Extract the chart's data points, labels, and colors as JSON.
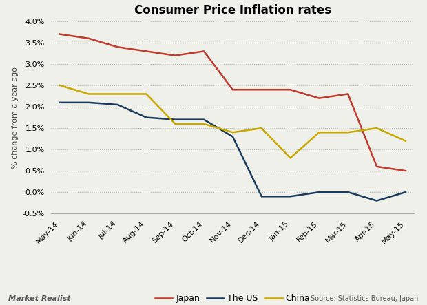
{
  "title": "Consumer Price Inflation rates",
  "ylabel": "% change from a year ago",
  "source_text": "Source: Statistics Bureau, Japan",
  "watermark": "Market Realist",
  "x_labels": [
    "May-14",
    "Jun-14",
    "Jul-14",
    "Aug-14",
    "Sep-14",
    "Oct-14",
    "Nov-14",
    "Dec-14",
    "Jan-15",
    "Feb-15",
    "Mar-15",
    "Apr-15",
    "May-15"
  ],
  "japan": [
    3.7,
    3.6,
    3.4,
    3.3,
    3.2,
    3.3,
    2.4,
    2.4,
    2.4,
    2.2,
    2.3,
    0.6,
    0.5
  ],
  "us": [
    2.1,
    2.1,
    2.05,
    1.75,
    1.7,
    1.7,
    1.3,
    -0.1,
    -0.1,
    0.0,
    0.0,
    -0.2,
    0.0
  ],
  "china": [
    2.5,
    2.3,
    2.3,
    2.3,
    1.6,
    1.6,
    1.4,
    1.5,
    0.8,
    1.4,
    1.4,
    1.5,
    1.2
  ],
  "japan_color": "#c0392b",
  "us_color": "#1a3a5c",
  "china_color": "#c8a800",
  "ylim": [
    -0.5,
    4.0
  ],
  "yticks": [
    -0.5,
    0.0,
    0.5,
    1.0,
    1.5,
    2.0,
    2.5,
    3.0,
    3.5,
    4.0
  ],
  "background_color": "#f0f0eb",
  "grid_color": "#bbbbbb",
  "title_fontsize": 12,
  "label_fontsize": 8,
  "tick_fontsize": 8,
  "legend_fontsize": 9,
  "linewidth": 1.8
}
